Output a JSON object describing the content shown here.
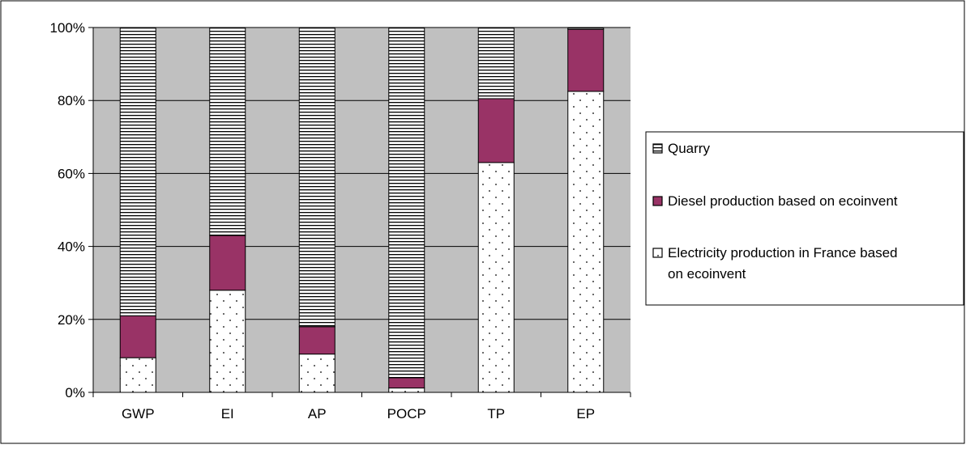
{
  "chart_data": {
    "type": "bar",
    "stacked": true,
    "percent": true,
    "title": "",
    "xlabel": "",
    "ylabel": "",
    "categories": [
      "GWP",
      "EI",
      "AP",
      "POCP",
      "TP",
      "EP"
    ],
    "ylim": [
      0,
      100
    ],
    "yticks": [
      "0%",
      "20%",
      "40%",
      "60%",
      "80%",
      "100%"
    ],
    "grid": true,
    "legend_position": "right",
    "series": [
      {
        "name": "Electricity production in France based on ecoinvent",
        "legend_lines": [
          "Electricity production in France based",
          "on ecoinvent"
        ],
        "pattern": "dots",
        "color": "#ffffff",
        "values": [
          9.5,
          28,
          10.5,
          1.2,
          63,
          82.5
        ]
      },
      {
        "name": "Diesel production based on ecoinvent",
        "legend_lines": [
          "Diesel production based on ecoinvent"
        ],
        "pattern": "solid",
        "color": "#993366",
        "values": [
          11.5,
          15,
          7.5,
          2.8,
          17.5,
          17
        ]
      },
      {
        "name": "Quarry",
        "legend_lines": [
          "Quarry"
        ],
        "pattern": "horizontal-lines",
        "color": "#ffffff",
        "values": [
          79,
          57,
          82,
          96,
          19.5,
          0.5
        ]
      }
    ],
    "colors": {
      "plot_background": "#c0c0c0",
      "gridline": "#000000",
      "diesel": "#993366",
      "frame": "#000000"
    }
  }
}
